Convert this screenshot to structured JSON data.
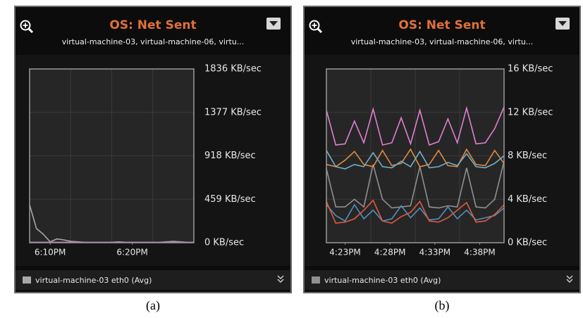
{
  "chart_data": [
    {
      "type": "line",
      "title": "OS: Net Sent",
      "subtitle": "virtual-machine-03, virtual-machine-06, virtu...",
      "caption": "(a)",
      "xlim": [
        0,
        24
      ],
      "xticks": [
        {
          "value": 3,
          "label": "6:10PM"
        },
        {
          "value": 15,
          "label": "6:20PM"
        }
      ],
      "ylim": [
        0,
        1836
      ],
      "yticks": [
        {
          "value": 0,
          "label": "0 KB/sec"
        },
        {
          "value": 459,
          "label": "459 KB/sec"
        },
        {
          "value": 918,
          "label": "918 KB/sec"
        },
        {
          "value": 1377,
          "label": "1377 KB/sec"
        },
        {
          "value": 1836,
          "label": "1836 KB/sec"
        }
      ],
      "grid": true,
      "series": [
        {
          "name": "virtual-machine-03 eth0 (Avg)",
          "color": "#a8a8a8",
          "values": [
            400,
            150,
            90,
            10,
            40,
            30,
            15,
            10,
            5,
            5,
            5,
            5,
            5,
            10,
            5,
            5,
            5,
            5,
            5,
            5,
            10,
            15,
            10,
            5,
            5
          ]
        },
        {
          "color": "#c070c0",
          "values": [
            5,
            5,
            5,
            5,
            5,
            5,
            5,
            5,
            5,
            5,
            5,
            5,
            5,
            5,
            5,
            5,
            5,
            5,
            5,
            5,
            5,
            5,
            5,
            5,
            5
          ]
        }
      ]
    },
    {
      "type": "line",
      "title": "OS: Net Sent",
      "subtitle": "virtual-machine-03, virtual-machine-06, virtu...",
      "caption": "(b)",
      "xlim": [
        0,
        19
      ],
      "xticks": [
        {
          "value": 2,
          "label": "4:23PM"
        },
        {
          "value": 6.8,
          "label": "4:28PM"
        },
        {
          "value": 11.6,
          "label": "4:33PM"
        },
        {
          "value": 16.4,
          "label": "4:38PM"
        }
      ],
      "ylim": [
        0,
        16
      ],
      "yticks": [
        {
          "value": 0,
          "label": "0 KB/sec"
        },
        {
          "value": 4,
          "label": "4 KB/sec"
        },
        {
          "value": 8,
          "label": "8 KB/sec"
        },
        {
          "value": 12,
          "label": "12 KB/sec"
        },
        {
          "value": 16,
          "label": "16 KB/sec"
        }
      ],
      "grid": true,
      "series": [
        {
          "name": "virtual-machine-03 eth0 (Avg)",
          "color": "#909090",
          "values": [
            6.8,
            3.3,
            3.3,
            4.0,
            3.3,
            7.2,
            4.0,
            3.2,
            3.3,
            3.4,
            7.0,
            3.3,
            3.2,
            3.4,
            3.3,
            6.9,
            3.3,
            3.2,
            4.0,
            7.5
          ]
        },
        {
          "color": "#e080d0",
          "values": [
            12.2,
            9.0,
            9.1,
            11.2,
            9.2,
            12.3,
            9.0,
            9.2,
            11.5,
            9.1,
            12.2,
            9.0,
            9.3,
            11.4,
            9.2,
            12.4,
            9.1,
            9.2,
            10.5,
            12.5
          ]
        },
        {
          "color": "#e08a40",
          "values": [
            7.2,
            7.0,
            7.6,
            8.4,
            7.2,
            7.0,
            8.5,
            7.1,
            7.3,
            8.6,
            7.0,
            7.2,
            8.5,
            7.1,
            7.0,
            8.6,
            7.2,
            7.1,
            8.5,
            7.3
          ]
        },
        {
          "color": "#70b0c8",
          "values": [
            8.5,
            7.0,
            6.8,
            7.2,
            7.0,
            8.3,
            7.0,
            6.9,
            7.5,
            7.0,
            8.4,
            6.9,
            7.0,
            7.4,
            7.1,
            8.2,
            7.0,
            6.9,
            7.3,
            8.0
          ]
        },
        {
          "color": "#5090c0",
          "values": [
            3.5,
            2.5,
            2.0,
            3.5,
            2.2,
            3.0,
            2.0,
            2.2,
            3.4,
            2.3,
            3.2,
            2.1,
            2.2,
            3.3,
            2.2,
            3.0,
            2.1,
            2.3,
            2.5,
            3.2
          ]
        },
        {
          "color": "#e05a40",
          "values": [
            3.8,
            1.8,
            1.9,
            2.2,
            3.0,
            3.9,
            2.0,
            1.8,
            2.4,
            2.8,
            3.8,
            2.0,
            1.9,
            2.3,
            3.0,
            3.7,
            1.9,
            2.0,
            2.6,
            3.5
          ]
        }
      ]
    }
  ]
}
